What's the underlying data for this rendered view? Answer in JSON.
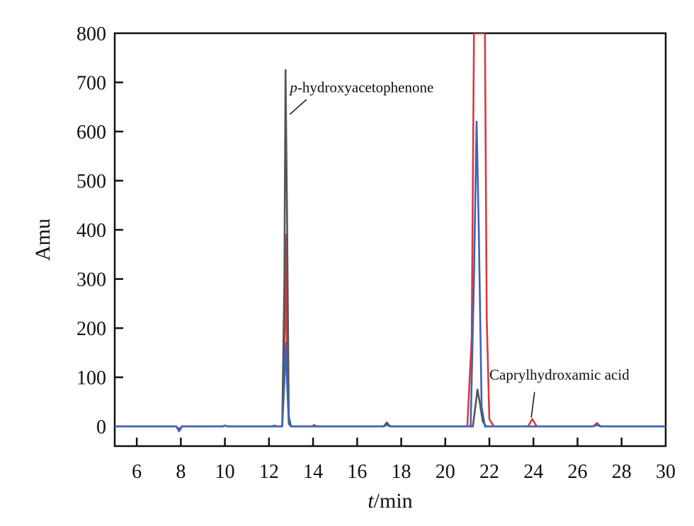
{
  "chart_data": {
    "type": "line",
    "title": "",
    "xlabel_italic": "t",
    "xlabel_rest": "/min",
    "ylabel": "Amu",
    "xlim": [
      5,
      30
    ],
    "ylim": [
      -40,
      800
    ],
    "x_ticks": [
      6,
      8,
      10,
      12,
      14,
      16,
      18,
      20,
      22,
      24,
      26,
      28,
      30
    ],
    "y_ticks": [
      0,
      100,
      200,
      300,
      400,
      500,
      600,
      700,
      800
    ],
    "grid": false,
    "legend": "none",
    "series": [
      {
        "color": "#d9393d",
        "points": [
          [
            5,
            0
          ],
          [
            7.8,
            0
          ],
          [
            7.92,
            -6
          ],
          [
            8.05,
            0
          ],
          [
            9.9,
            0
          ],
          [
            10.0,
            2
          ],
          [
            10.1,
            0
          ],
          [
            12.15,
            0
          ],
          [
            12.25,
            2
          ],
          [
            12.35,
            0
          ],
          [
            12.6,
            0
          ],
          [
            12.7,
            130
          ],
          [
            12.75,
            390
          ],
          [
            12.8,
            200
          ],
          [
            12.9,
            10
          ],
          [
            13.0,
            0
          ],
          [
            13.95,
            0
          ],
          [
            14.05,
            3
          ],
          [
            14.15,
            0
          ],
          [
            17.2,
            0
          ],
          [
            17.35,
            4
          ],
          [
            17.5,
            0
          ],
          [
            21.0,
            0
          ],
          [
            21.2,
            180
          ],
          [
            21.3,
            800
          ],
          [
            21.8,
            800
          ],
          [
            21.88,
            220
          ],
          [
            22.0,
            15
          ],
          [
            22.2,
            0
          ],
          [
            23.75,
            0
          ],
          [
            23.95,
            15
          ],
          [
            24.15,
            0
          ],
          [
            26.7,
            0
          ],
          [
            26.88,
            7
          ],
          [
            27.05,
            0
          ],
          [
            30,
            0
          ]
        ]
      },
      {
        "color": "#555555",
        "points": [
          [
            5,
            0
          ],
          [
            7.8,
            0
          ],
          [
            7.92,
            -6
          ],
          [
            8.05,
            0
          ],
          [
            9.9,
            0
          ],
          [
            10.0,
            2
          ],
          [
            10.1,
            0
          ],
          [
            12.6,
            0
          ],
          [
            12.7,
            300
          ],
          [
            12.75,
            725
          ],
          [
            12.82,
            420
          ],
          [
            12.9,
            20
          ],
          [
            13.0,
            0
          ],
          [
            17.2,
            0
          ],
          [
            17.35,
            8
          ],
          [
            17.5,
            0
          ],
          [
            21.25,
            0
          ],
          [
            21.38,
            45
          ],
          [
            21.46,
            75
          ],
          [
            21.56,
            50
          ],
          [
            21.7,
            10
          ],
          [
            21.85,
            0
          ],
          [
            26.7,
            0
          ],
          [
            26.88,
            3
          ],
          [
            27.05,
            0
          ],
          [
            30,
            0
          ]
        ]
      },
      {
        "color": "#3f63b5",
        "points": [
          [
            5,
            0
          ],
          [
            7.8,
            0
          ],
          [
            7.92,
            -10
          ],
          [
            8.05,
            0
          ],
          [
            9.9,
            0
          ],
          [
            10.0,
            2
          ],
          [
            10.1,
            0
          ],
          [
            12.6,
            0
          ],
          [
            12.7,
            90
          ],
          [
            12.75,
            170
          ],
          [
            12.82,
            90
          ],
          [
            12.9,
            5
          ],
          [
            13.0,
            0
          ],
          [
            17.2,
            0
          ],
          [
            17.35,
            3
          ],
          [
            17.5,
            0
          ],
          [
            21.15,
            0
          ],
          [
            21.3,
            300
          ],
          [
            21.42,
            620
          ],
          [
            21.52,
            400
          ],
          [
            21.65,
            40
          ],
          [
            21.8,
            0
          ],
          [
            26.7,
            0
          ],
          [
            26.88,
            3
          ],
          [
            27.05,
            0
          ],
          [
            30,
            0
          ]
        ]
      }
    ],
    "annotations": [
      {
        "text_italic": "p",
        "text_rest": "-hydroxyacetophenone",
        "text_x": 12.95,
        "text_y": 680,
        "arrow_from": [
          13.7,
          665
        ],
        "arrow_to": [
          12.95,
          635
        ]
      },
      {
        "text": "Caprylhydroxamic acid",
        "text_x": 22.0,
        "text_y": 95,
        "arrow_from": [
          24.05,
          70
        ],
        "arrow_to": [
          23.9,
          18
        ]
      }
    ]
  }
}
